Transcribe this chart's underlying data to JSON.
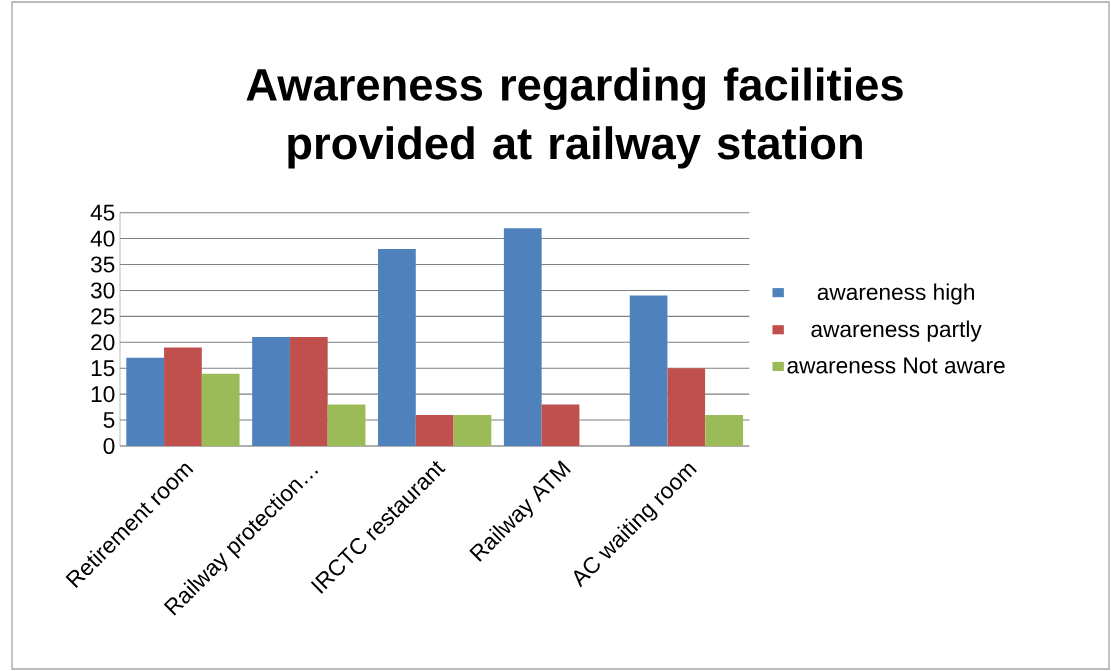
{
  "chart_data": {
    "type": "bar",
    "title": "Awareness regarding facilities provided at railway station",
    "categories": [
      "Retirement room",
      "Railway protection…",
      "IRCTC restaurant",
      "Railway ATM",
      "AC waiting room"
    ],
    "series": [
      {
        "name": "awareness high",
        "color": "#4f81bd",
        "values": [
          17,
          21,
          38,
          42,
          29
        ]
      },
      {
        "name": "awareness partly",
        "color": "#c0504d",
        "values": [
          19,
          21,
          6,
          8,
          15
        ]
      },
      {
        "name": "awareness Not aware",
        "color": "#9bbb59",
        "values": [
          14,
          8,
          6,
          0,
          6
        ]
      }
    ],
    "ylim": [
      0,
      45
    ],
    "yticks": [
      0,
      5,
      10,
      15,
      20,
      25,
      30,
      35,
      40,
      45
    ],
    "grid": "y",
    "legend": "right"
  }
}
